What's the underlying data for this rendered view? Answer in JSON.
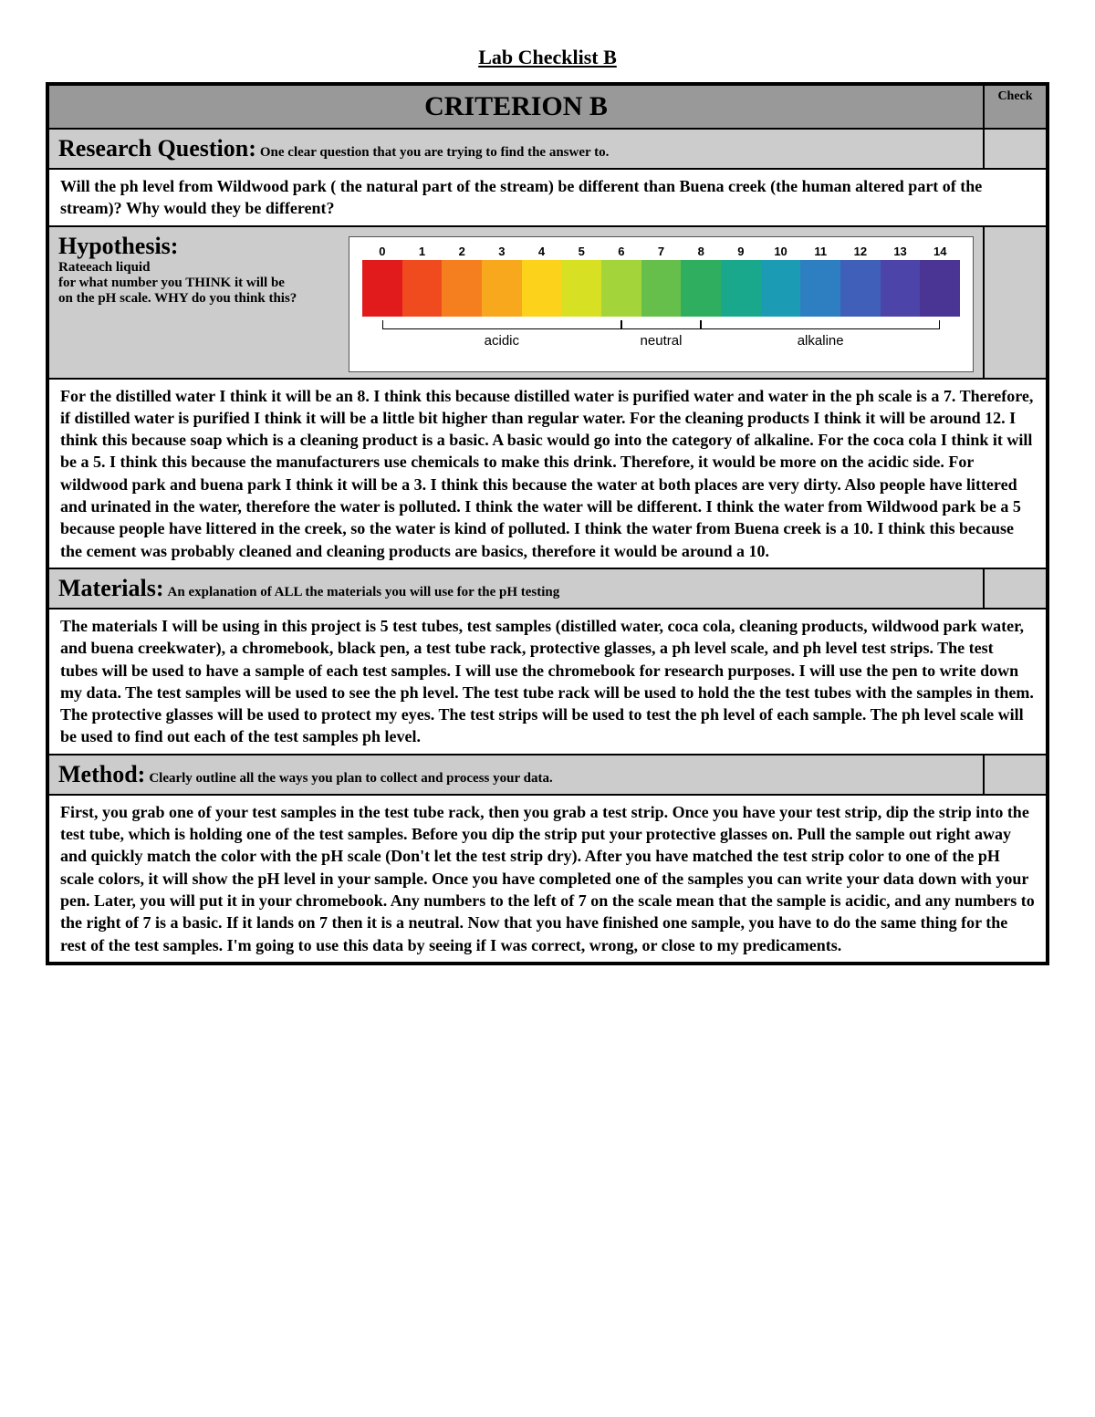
{
  "doc_title": "Lab Checklist B",
  "header": {
    "title": "CRITERION B",
    "check": "Check"
  },
  "sections": {
    "rq": {
      "title": "Research Question:",
      "sub": "One clear question that you are trying to find the answer to.",
      "body": "Will the ph level from Wildwood park ( the natural part of the stream) be different than Buena creek (the human altered part of the stream)? Why would they be different?"
    },
    "hyp": {
      "title": "Hypothesis:",
      "sub1": "Rateeach liquid",
      "sub2": "for what number you THINK it will be",
      "sub3": "on the pH scale.  WHY do you think this?",
      "body": " For the distilled water I think it will be an 8. I think this because distilled water is purified water and water in the ph scale is a 7. Therefore, if distilled water is purified I think it will be a little bit higher than regular water. For the cleaning products I think it will be around 12. I think this because soap which is a cleaning product is a basic. A basic would go into the category of alkaline. For the coca cola I think it will be a 5. I think this because the manufacturers use chemicals to make this drink. Therefore, it would be more on the acidic side. For wildwood park and buena park I think it will be a 3. I think this because the water at both places are very dirty. Also people have littered and urinated in the water, therefore the water is polluted. I think the water will be different. I think the water from Wildwood park be a 5 because people have littered in the creek, so the water is kind of polluted. I think the water from Buena creek is a 10. I think this because the cement was probably cleaned and cleaning products are basics, therefore it would be around a 10."
    },
    "mat": {
      "title": "Materials:",
      "sub": "An explanation of ALL the materials you will use for the pH testing",
      "body": "The materials I will be using in this project is 5 test tubes, test samples (distilled water, coca cola, cleaning products, wildwood park water, and buena creekwater), a chromebook, black pen, a test tube rack, protective glasses, a ph level scale, and ph level test strips. The test tubes will be used to have a sample of each test samples. I will use the chromebook for research purposes. I will use the pen  to write down my data. The test samples will be used to see the ph level. The test tube rack will be used to hold the the test tubes with the samples in them. The protective glasses will be used to protect my eyes. The test strips will be used to test the ph level of each sample. The ph level scale will be used to find out each of the test samples ph level."
    },
    "meth": {
      "title": "Method:",
      "sub": "Clearly outline all the ways you plan to collect and process your data.",
      "body": "First, you grab one of your test samples in the test tube rack, then you grab a test strip. Once you have your test strip, dip the strip into the test tube, which is holding one of the test samples. Before you dip the strip put your protective glasses on. Pull the sample out right away and quickly match the color with the pH scale (Don't let the test strip dry). After you have matched the test strip color to one of the pH scale colors, it will show the pH level in your sample. Once you have completed one of the samples you can write your data down with your pen. Later, you will put it in your chromebook. Any numbers to the left of 7 on the scale mean that the sample is acidic, and any numbers to the right of 7 is a basic. If it lands on 7 then it is a neutral. Now that you have finished one sample, you have to do the same thing for the rest of the test samples. I'm going to use this data by seeing if I was correct, wrong, or close to my predicaments."
    }
  },
  "ph_scale": {
    "numbers": [
      "0",
      "1",
      "2",
      "3",
      "4",
      "5",
      "6",
      "7",
      "8",
      "9",
      "10",
      "11",
      "12",
      "13",
      "14"
    ],
    "colors": [
      "#e11b1b",
      "#ef4b1f",
      "#f57f1e",
      "#f8a81c",
      "#fdd21b",
      "#d7e022",
      "#a3d53a",
      "#66bf4a",
      "#2fae5f",
      "#1aa88c",
      "#1c9bb5",
      "#2d7fc1",
      "#3f5fb8",
      "#4c44a8",
      "#4a3494"
    ],
    "regions": {
      "acidic": {
        "label": "acidic",
        "start": 0,
        "end": 6
      },
      "neutral": {
        "label": "neutral",
        "start": 6,
        "end": 8
      },
      "alkaline": {
        "label": "alkaline",
        "start": 8,
        "end": 14
      }
    }
  }
}
